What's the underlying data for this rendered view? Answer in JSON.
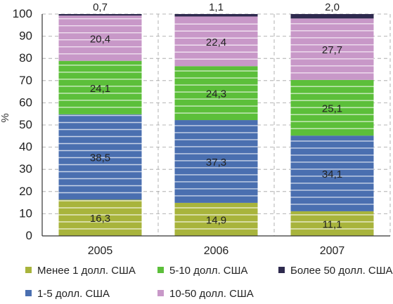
{
  "chart_data": {
    "type": "bar",
    "stacked": true,
    "ylabel": "%",
    "ylim": [
      0,
      100
    ],
    "yticks": [
      "0",
      "10",
      "20",
      "30",
      "40",
      "50",
      "60",
      "70",
      "80",
      "90",
      "100"
    ],
    "grid": true,
    "legend_position": "bottom",
    "categories": [
      "2005",
      "2006",
      "2007"
    ],
    "series": [
      {
        "name": "Менее 1 долл. США",
        "color": "#a8b43c",
        "values": [
          16.3,
          14.9,
          11.1
        ],
        "labels": [
          "16,3",
          "14,9",
          "11,1"
        ]
      },
      {
        "name": "1-5 долл. США",
        "color": "#4a6fb0",
        "values": [
          38.5,
          37.3,
          34.1
        ],
        "labels": [
          "38,5",
          "37,3",
          "34,1"
        ]
      },
      {
        "name": "5-10 долл. США",
        "color": "#5cbf3a",
        "values": [
          24.1,
          24.3,
          25.1
        ],
        "labels": [
          "24,1",
          "24,3",
          "25,1"
        ]
      },
      {
        "name": "10-50 долл. США",
        "color": "#c898c8",
        "values": [
          20.4,
          22.4,
          27.7
        ],
        "labels": [
          "20,4",
          "22,4",
          "27,7"
        ]
      },
      {
        "name": "Более 50 долл. США",
        "color": "#2e2a4e",
        "values": [
          0.7,
          1.1,
          2.0
        ],
        "labels": [
          "0,7",
          "1,1",
          "2,0"
        ]
      }
    ]
  }
}
